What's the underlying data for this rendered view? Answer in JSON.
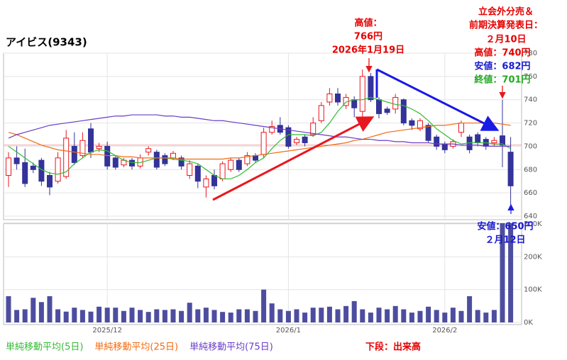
{
  "chart_data": {
    "type": "candlestick",
    "title": "アイビス(9343)",
    "categories": [
      null,
      null,
      null,
      null,
      null,
      null,
      null,
      null,
      null,
      null,
      null,
      null,
      "2025/12",
      null,
      null,
      null,
      null,
      null,
      null,
      null,
      null,
      null,
      null,
      null,
      null,
      null,
      null,
      null,
      null,
      null,
      null,
      null,
      null,
      null,
      "2026/1",
      null,
      null,
      null,
      null,
      null,
      null,
      null,
      null,
      null,
      null,
      null,
      null,
      null,
      null,
      null,
      null,
      null,
      null,
      "2026/2",
      null,
      null,
      null,
      null,
      null,
      null,
      null,
      null
    ],
    "open": [
      675,
      690,
      686,
      683,
      688,
      675,
      670,
      674,
      700,
      692,
      715,
      698,
      700,
      690,
      684,
      688,
      683,
      695,
      695,
      692,
      690,
      690,
      675,
      683,
      665,
      675,
      672,
      680,
      688,
      685,
      692,
      693,
      712,
      718,
      716,
      703,
      708,
      710,
      722,
      738,
      745,
      735,
      740,
      730,
      760,
      740,
      732,
      732,
      740,
      722,
      715,
      718,
      708,
      702,
      700,
      712,
      708,
      710,
      706,
      703,
      709,
      695
    ],
    "high": [
      695,
      700,
      698,
      686,
      690,
      678,
      695,
      714,
      712,
      712,
      720,
      703,
      704,
      692,
      690,
      690,
      693,
      700,
      697,
      694,
      696,
      692,
      688,
      685,
      675,
      680,
      687,
      690,
      690,
      695,
      694,
      716,
      722,
      725,
      718,
      708,
      710,
      725,
      738,
      750,
      750,
      745,
      743,
      766,
      763,
      742,
      734,
      745,
      741,
      724,
      724,
      720,
      710,
      704,
      706,
      722,
      710,
      712,
      708,
      708,
      740,
      708
    ],
    "low": [
      665,
      680,
      665,
      677,
      666,
      658,
      668,
      672,
      684,
      690,
      690,
      695,
      680,
      680,
      682,
      680,
      681,
      692,
      680,
      683,
      688,
      680,
      672,
      664,
      656,
      663,
      670,
      678,
      678,
      683,
      686,
      690,
      710,
      710,
      698,
      701,
      700,
      708,
      720,
      735,
      735,
      732,
      725,
      725,
      738,
      724,
      727,
      728,
      718,
      714,
      713,
      703,
      697,
      694,
      698,
      708,
      694,
      700,
      697,
      700,
      682,
      650
    ],
    "close": [
      690,
      685,
      668,
      680,
      670,
      665,
      690,
      707,
      686,
      705,
      695,
      700,
      683,
      682,
      688,
      683,
      690,
      698,
      682,
      685,
      694,
      683,
      685,
      670,
      672,
      666,
      685,
      688,
      680,
      692,
      688,
      712,
      717,
      712,
      700,
      706,
      703,
      720,
      735,
      745,
      738,
      742,
      733,
      760,
      740,
      728,
      729,
      742,
      720,
      718,
      722,
      705,
      700,
      697,
      704,
      720,
      697,
      703,
      700,
      705,
      701,
      666
    ],
    "up_color": "#e8171f",
    "down_color": "#333399",
    "series": [
      {
        "name": "単純移動平均(5日)",
        "color": "#33bb33",
        "values": [
          700,
          695,
          690,
          685,
          680,
          677,
          676,
          678,
          685,
          690,
          695,
          697,
          696,
          692,
          688,
          686,
          686,
          688,
          690,
          690,
          689,
          688,
          687,
          685,
          680,
          675,
          672,
          672,
          675,
          680,
          686,
          690,
          698,
          705,
          710,
          710,
          710,
          709,
          712,
          720,
          730,
          738,
          740,
          740,
          742,
          740,
          738,
          736,
          735,
          732,
          728,
          722,
          715,
          710,
          705,
          702,
          703,
          703,
          703,
          702,
          702,
          698
        ]
      },
      {
        "name": "単純移動平均(25日)",
        "color": "#f26a10",
        "values": [
          712,
          710,
          707,
          704,
          701,
          699,
          697,
          696,
          695,
          694,
          693,
          693,
          692,
          692,
          691,
          691,
          690,
          690,
          690,
          690,
          690,
          689,
          689,
          689,
          689,
          689,
          689,
          690,
          690,
          691,
          692,
          693,
          694,
          695,
          696,
          697,
          698,
          699,
          700,
          701,
          702,
          703,
          705,
          706,
          708,
          710,
          712,
          713,
          714,
          715,
          716,
          717,
          718,
          718,
          719,
          720,
          720,
          720,
          720,
          720,
          719,
          718
        ]
      },
      {
        "name": "単純移動平均(75日)",
        "color": "#6a3cc8",
        "values": [
          707,
          710,
          712,
          714,
          716,
          718,
          719,
          720,
          721,
          722,
          723,
          724,
          725,
          726,
          726,
          727,
          727,
          727,
          727,
          726,
          726,
          725,
          725,
          724,
          723,
          722,
          722,
          721,
          720,
          719,
          718,
          717,
          716,
          715,
          714,
          713,
          712,
          711,
          710,
          709,
          708,
          708,
          707,
          706,
          706,
          705,
          705,
          704,
          704,
          703,
          703,
          703,
          702,
          702,
          702,
          701,
          701,
          701,
          700,
          700,
          700,
          700
        ]
      }
    ],
    "reference_line": 701,
    "volume": [
      80,
      38,
      40,
      75,
      62,
      80,
      40,
      33,
      45,
      38,
      33,
      48,
      45,
      45,
      35,
      45,
      38,
      32,
      40,
      38,
      40,
      35,
      60,
      40,
      45,
      38,
      32,
      30,
      40,
      40,
      35,
      100,
      58,
      40,
      35,
      40,
      30,
      45,
      45,
      48,
      40,
      50,
      65,
      40,
      30,
      45,
      40,
      50,
      40,
      30,
      35,
      48,
      38,
      30,
      45,
      35,
      80,
      38,
      30,
      38,
      310,
      310
    ],
    "volume_color": "#4d4da0",
    "ylim": [
      640,
      780
    ],
    "yticks": [
      640,
      660,
      680,
      700,
      720,
      740,
      760,
      780
    ],
    "y2lim": [
      0,
      300
    ],
    "y2ticks": [
      {
        "value": 0,
        "label": "0K"
      },
      {
        "value": 100,
        "label": "100K"
      },
      {
        "value": 200,
        "label": "200K"
      },
      {
        "value": 300,
        "label": "300K"
      }
    ],
    "grid": true,
    "footnote": "下段：出来高",
    "annotations": [
      {
        "text": "高値：",
        "color": "#e60000"
      },
      {
        "text": "766円",
        "color": "#e60000"
      },
      {
        "text": "2026年1月19日",
        "color": "#e60000"
      },
      {
        "text": "立会外分売＆",
        "color": "#e60000"
      },
      {
        "text": "前期決算発表日：",
        "color": "#e60000"
      },
      {
        "text": "２月10日",
        "color": "#e60000"
      },
      {
        "text": "高値：740円",
        "color": "#e60000"
      },
      {
        "text": "安値：682円",
        "color": "#1a1acc"
      },
      {
        "text": "終値：701円",
        "color": "#22aa22"
      },
      {
        "text": "安値：650円",
        "color": "#1a1acc"
      },
      {
        "text": "２月12日",
        "color": "#1a1acc"
      }
    ]
  }
}
